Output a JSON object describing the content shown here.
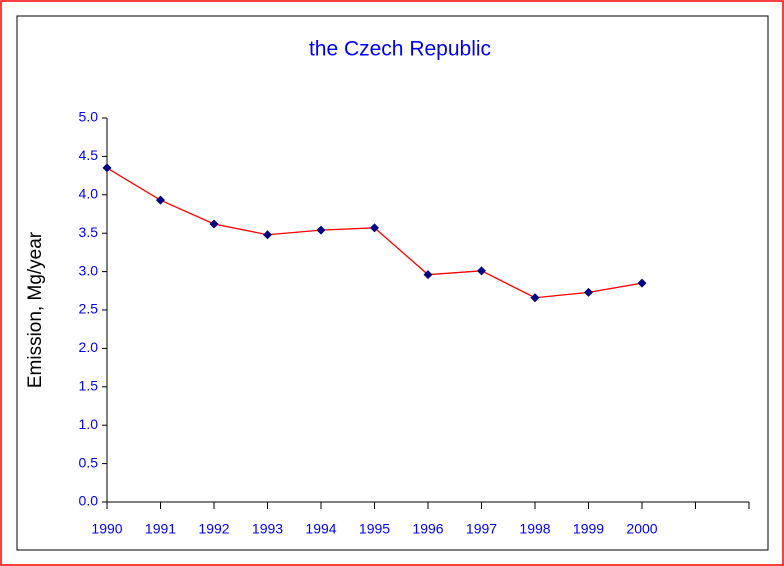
{
  "chart_data": {
    "type": "line",
    "title": "the Czech Republic",
    "y_label": "Emission, Mg/year",
    "categories": [
      "1990",
      "1991",
      "1992",
      "1993",
      "1994",
      "1995",
      "1996",
      "1997",
      "1998",
      "1999",
      "2000",
      null,
      null
    ],
    "series": [
      {
        "name": "the Czech Republic",
        "color": "#ff0000",
        "marker_color": "#000080",
        "values": [
          4.35,
          3.93,
          3.62,
          3.48,
          3.54,
          3.57,
          2.96,
          3.01,
          2.66,
          2.73,
          2.85,
          null,
          null
        ]
      }
    ],
    "ylim": [
      0,
      5
    ],
    "yticks": [
      {
        "value": 0,
        "label": "0.0"
      },
      {
        "value": 0.5,
        "label": "0.5"
      },
      {
        "value": 1,
        "label": "1.0"
      },
      {
        "value": 1.5,
        "label": "1.5"
      },
      {
        "value": 2,
        "label": "2.0"
      },
      {
        "value": 2.5,
        "label": "2.5"
      },
      {
        "value": 3,
        "label": "3.0"
      },
      {
        "value": 3.5,
        "label": "3.5"
      },
      {
        "value": 4,
        "label": "4.0"
      },
      {
        "value": 4.5,
        "label": "4.5"
      },
      {
        "value": 5,
        "label": "5.0"
      }
    ],
    "grid": false,
    "text_color": "#0000ff"
  }
}
